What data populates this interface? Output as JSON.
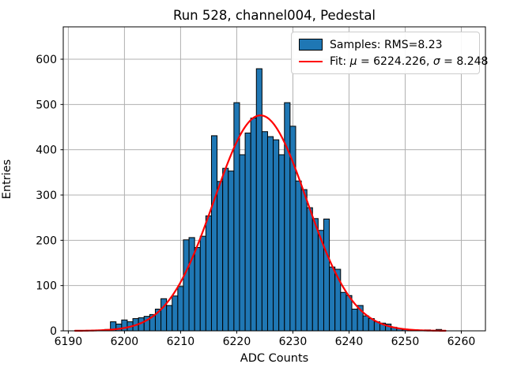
{
  "chart_data": {
    "type": "bar",
    "subtype": "histogram-with-gaussian-fit",
    "title": "Run 528, channel004, Pedestal",
    "xlabel": "ADC Counts",
    "ylabel": "Entries",
    "x_ticks": [
      6190,
      6200,
      6210,
      6220,
      6230,
      6240,
      6250,
      6260
    ],
    "y_ticks": [
      0,
      100,
      200,
      300,
      400,
      500,
      600
    ],
    "xlim": [
      6189.1,
      6264.3
    ],
    "ylim": [
      0,
      671.5
    ],
    "grid": true,
    "legend_position": "upper right",
    "bar_color": "#1f77b4",
    "bar_edge_color": "#000000",
    "grid_color": "#b0b0b0",
    "fit_color": "#ff0000",
    "bin_width": 1,
    "first_bin_center": 6197,
    "counts": [
      3,
      20,
      15,
      24,
      20,
      27,
      29,
      32,
      36,
      48,
      71,
      56,
      77,
      98,
      201,
      206,
      184,
      209,
      254,
      431,
      330,
      359,
      353,
      504,
      389,
      437,
      470,
      579,
      440,
      429,
      422,
      389,
      504,
      452,
      331,
      312,
      272,
      248,
      222,
      247,
      141,
      136,
      85,
      78,
      48,
      56,
      33,
      27,
      20,
      17,
      15,
      8,
      5,
      3,
      2,
      0,
      0,
      2,
      0,
      3
    ],
    "fit": {
      "model": "gaussian",
      "mu": 6224.226,
      "sigma": 8.248,
      "amplitude": 476,
      "x_range": [
        6191.2,
        6257.2
      ]
    }
  },
  "legend": {
    "samples_label": "Samples: RMS=8.23",
    "fit_parts": [
      "Fit: ",
      "μ",
      " = 6224.226, ",
      "σ",
      " = 8.248"
    ]
  },
  "stats": {
    "rms": "8.23",
    "mu": "6224.226",
    "sigma": "8.248"
  }
}
